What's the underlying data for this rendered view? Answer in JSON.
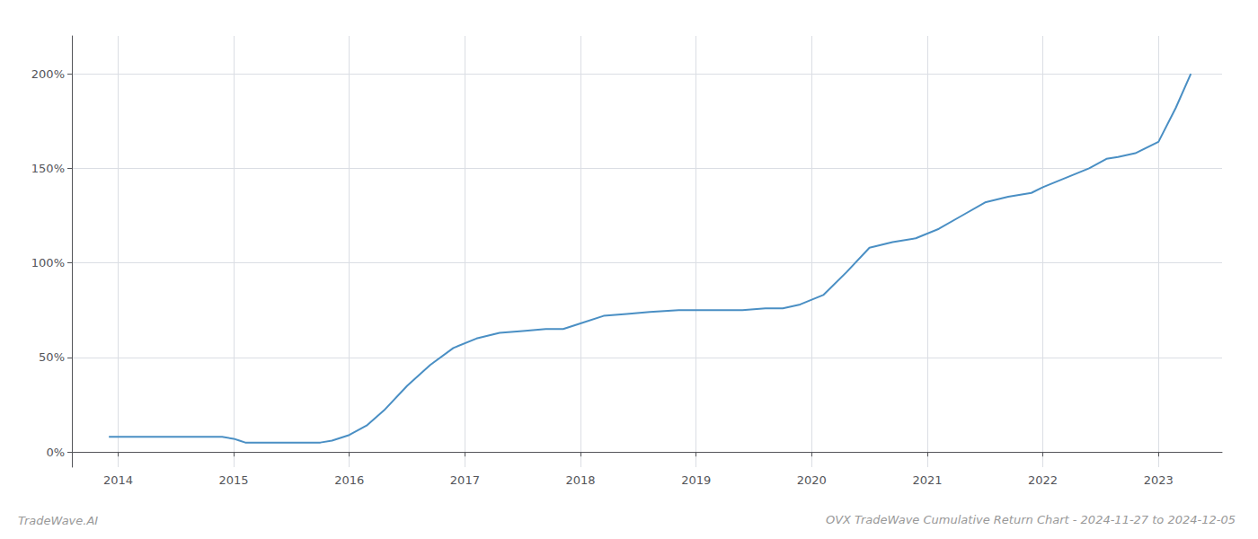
{
  "chart_data": {
    "type": "line",
    "title": "OVX TradeWave Cumulative Return Chart - 2024-11-27 to 2024-12-05",
    "annotations": [
      "TradeWave.AI"
    ],
    "x": [
      2013.92,
      2014.0,
      2014.15,
      2014.3,
      2014.5,
      2014.7,
      2014.9,
      2015.0,
      2015.05,
      2015.1,
      2015.2,
      2015.4,
      2015.55,
      2015.65,
      2015.75,
      2015.85,
      2016.0,
      2016.15,
      2016.3,
      2016.5,
      2016.7,
      2016.9,
      2017.1,
      2017.3,
      2017.5,
      2017.7,
      2017.85,
      2018.0,
      2018.2,
      2018.4,
      2018.6,
      2018.85,
      2019.0,
      2019.2,
      2019.4,
      2019.6,
      2019.75,
      2019.9,
      2020.1,
      2020.3,
      2020.5,
      2020.7,
      2020.9,
      2021.1,
      2021.3,
      2021.5,
      2021.7,
      2021.9,
      2022.0,
      2022.2,
      2022.4,
      2022.55,
      2022.65,
      2022.8,
      2023.0,
      2023.15,
      2023.28
    ],
    "values": [
      8,
      8,
      8,
      8,
      8,
      8,
      8,
      7,
      6,
      5,
      5,
      5,
      5,
      5,
      5,
      6,
      9,
      14,
      22,
      35,
      46,
      55,
      60,
      63,
      64,
      65,
      65,
      68,
      72,
      73,
      74,
      75,
      75,
      75,
      75,
      76,
      76,
      78,
      83,
      95,
      108,
      111,
      113,
      118,
      125,
      132,
      135,
      137,
      140,
      145,
      150,
      155,
      156,
      158,
      164,
      182,
      200
    ],
    "color": "#4a8fc4",
    "xlim": [
      2013.6,
      2023.55
    ],
    "xticks": [
      2014,
      2015,
      2016,
      2017,
      2018,
      2019,
      2020,
      2021,
      2022,
      2023
    ],
    "ylim": [
      -8,
      220
    ],
    "yticks": [
      {
        "value": 0,
        "label": "0%"
      },
      {
        "value": 50,
        "label": "50%"
      },
      {
        "value": 100,
        "label": "100%"
      },
      {
        "value": 150,
        "label": "150%"
      },
      {
        "value": 200,
        "label": "200%"
      }
    ],
    "grid": true
  }
}
